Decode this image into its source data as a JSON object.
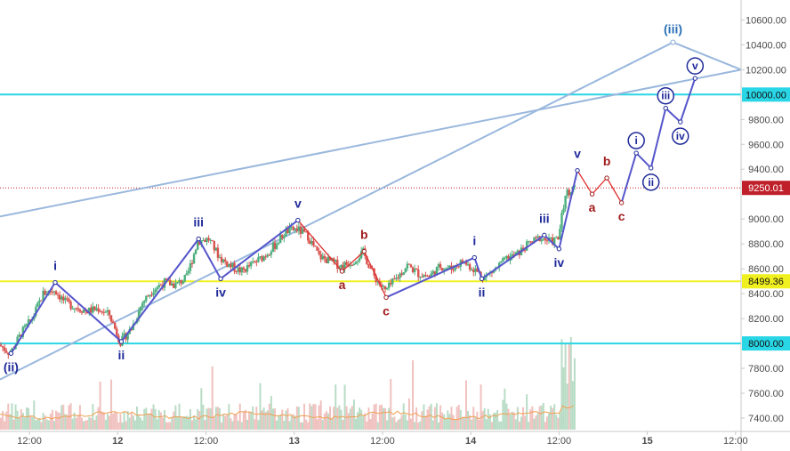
{
  "colors": {
    "background": "#ffffff",
    "axis_text": "#4a4a4a",
    "axis_line": "#c9c9c9",
    "up_candle": "#4caf7d",
    "down_candle": "#d9534f",
    "volume_up": "#b9dcc6",
    "volume_down": "#f0c1bf",
    "volume_ma": "#f0a050",
    "wave_line": "#5555cc",
    "wave_label_blue": "#1f2a9a",
    "wave_label_red": "#a01c1c",
    "correction_line": "#e03030",
    "channel_line": "#9ab8dd",
    "cyan_level": "#29d6e6",
    "yellow_level": "#f0f020",
    "price_line": "#c0202a"
  },
  "chart_data": {
    "type": "candlestick",
    "title": "",
    "xlabel": "",
    "ylabel": "",
    "y_axis_position": "right",
    "ylim": [
      7300,
      10760
    ],
    "yticks": [
      7400,
      7600,
      7800,
      8000,
      8200,
      8400,
      8600,
      8800,
      9000,
      9200,
      9400,
      9600,
      9800,
      10000,
      10200,
      10400,
      10600
    ],
    "ytick_labels": [
      "7400.00",
      "7600.00",
      "7800.00",
      "8000.00",
      "8200.00",
      "8400.00",
      "8600.00",
      "8800.00",
      "9000.00",
      "9200.00",
      "9400.00",
      "9600.00",
      "9800.00",
      "10000.00",
      "10200.00",
      "10400.00",
      "10600.00"
    ],
    "xlim": [
      "11 08:00",
      "15 12:45"
    ],
    "xticks": [
      {
        "t": "11 12:00",
        "label": "12:00"
      },
      {
        "t": "12 00:00",
        "label": "12"
      },
      {
        "t": "12 12:00",
        "label": "12:00"
      },
      {
        "t": "13 00:00",
        "label": "13"
      },
      {
        "t": "13 12:00",
        "label": "12:00"
      },
      {
        "t": "14 00:00",
        "label": "14"
      },
      {
        "t": "14 12:00",
        "label": "12:00"
      },
      {
        "t": "15 00:00",
        "label": "15"
      },
      {
        "t": "15 12:00",
        "label": "12:00"
      }
    ],
    "price_path": [
      [
        "11 08:00",
        7990
      ],
      [
        "11 09:30",
        7920
      ],
      [
        "11 11:00",
        8080
      ],
      [
        "11 12:30",
        8200
      ],
      [
        "11 14:00",
        8400
      ],
      [
        "11 15:30",
        8430
      ],
      [
        "11 17:00",
        8330
      ],
      [
        "11 18:30",
        8290
      ],
      [
        "11 20:00",
        8260
      ],
      [
        "11 21:30",
        8280
      ],
      [
        "11 23:00",
        8230
      ],
      [
        "12 00:30",
        8010
      ],
      [
        "12 02:00",
        8120
      ],
      [
        "12 03:30",
        8330
      ],
      [
        "12 05:00",
        8440
      ],
      [
        "12 06:30",
        8490
      ],
      [
        "12 08:00",
        8470
      ],
      [
        "12 09:30",
        8530
      ],
      [
        "12 11:00",
        8820
      ],
      [
        "12 12:30",
        8840
      ],
      [
        "12 14:00",
        8690
      ],
      [
        "12 15:30",
        8620
      ],
      [
        "12 17:00",
        8580
      ],
      [
        "12 18:30",
        8640
      ],
      [
        "12 20:00",
        8700
      ],
      [
        "12 21:30",
        8790
      ],
      [
        "12 23:00",
        8900
      ],
      [
        "13 00:30",
        8920
      ],
      [
        "13 02:00",
        8860
      ],
      [
        "13 03:30",
        8700
      ],
      [
        "13 05:00",
        8660
      ],
      [
        "13 06:30",
        8620
      ],
      [
        "13 08:00",
        8660
      ],
      [
        "13 09:30",
        8730
      ],
      [
        "13 11:00",
        8540
      ],
      [
        "13 12:30",
        8420
      ],
      [
        "13 14:00",
        8520
      ],
      [
        "13 15:30",
        8630
      ],
      [
        "13 17:00",
        8560
      ],
      [
        "13 18:30",
        8540
      ],
      [
        "13 20:00",
        8620
      ],
      [
        "13 21:30",
        8600
      ],
      [
        "13 23:00",
        8660
      ],
      [
        "14 00:30",
        8600
      ],
      [
        "14 02:00",
        8530
      ],
      [
        "14 03:30",
        8600
      ],
      [
        "14 05:00",
        8680
      ],
      [
        "14 06:30",
        8720
      ],
      [
        "14 08:00",
        8800
      ],
      [
        "14 09:30",
        8850
      ],
      [
        "14 11:00",
        8820
      ],
      [
        "14 12:00",
        8840
      ],
      [
        "14 13:00",
        9200
      ],
      [
        "14 14:00",
        9250.01
      ]
    ],
    "last_price": 9250.01,
    "last_price_label": "9250.01",
    "horizontal_levels": [
      {
        "value": 10000.0,
        "label": "10000.00",
        "color": "#29d6e6"
      },
      {
        "value": 8499.36,
        "label": "8499.36",
        "color": "#f0f020"
      },
      {
        "value": 8000.0,
        "label": "8000.00",
        "color": "#29d6e6"
      }
    ],
    "channel_lines": [
      {
        "start": [
          "11 08:00",
          9020
        ],
        "end": [
          "15 12:45",
          10200
        ]
      },
      {
        "start": [
          "11 08:00",
          7710
        ],
        "end": [
          "15 03:30",
          10420
        ]
      },
      {
        "start": [
          "15 03:30",
          10420
        ],
        "end": [
          "15 12:45",
          10200
        ]
      }
    ],
    "impulse_waves": [
      {
        "t": "11 09:30",
        "price": 7920,
        "label": "(ii)",
        "label_pos": "below"
      },
      {
        "t": "11 15:30",
        "price": 8490,
        "label": "i",
        "label_pos": "above"
      },
      {
        "t": "12 00:30",
        "price": 8015,
        "label": "ii",
        "label_pos": "below"
      },
      {
        "t": "12 11:00",
        "price": 8840,
        "label": "iii",
        "label_pos": "above"
      },
      {
        "t": "12 14:00",
        "price": 8520,
        "label": "iv",
        "label_pos": "below"
      },
      {
        "t": "13 00:30",
        "price": 8990,
        "label": "v",
        "label_pos": "above"
      }
    ],
    "correction_waves": [
      {
        "t": "13 06:30",
        "price": 8580,
        "label": "a",
        "label_pos": "below"
      },
      {
        "t": "13 09:30",
        "price": 8740,
        "label": "b",
        "label_pos": "above"
      },
      {
        "t": "13 12:30",
        "price": 8370,
        "label": "c",
        "label_pos": "below"
      }
    ],
    "second_impulse": [
      {
        "t": "14 00:30",
        "price": 8690,
        "label": "i",
        "label_pos": "above"
      },
      {
        "t": "14 01:30",
        "price": 8520,
        "label": "ii",
        "label_pos": "below"
      },
      {
        "t": "14 10:00",
        "price": 8870,
        "label": "iii",
        "label_pos": "above"
      },
      {
        "t": "14 12:00",
        "price": 8760,
        "label": "iv",
        "label_pos": "below"
      },
      {
        "t": "14 14:30",
        "price": 9390,
        "label": "v",
        "label_pos": "above"
      }
    ],
    "projected_correction": [
      {
        "t": "14 14:30",
        "price": 9390
      },
      {
        "t": "14 16:30",
        "price": 9200,
        "label": "a",
        "label_pos": "below"
      },
      {
        "t": "14 18:30",
        "price": 9330,
        "label": "b",
        "label_pos": "above"
      },
      {
        "t": "14 20:30",
        "price": 9130,
        "label": "c",
        "label_pos": "below"
      }
    ],
    "projected_impulse": [
      {
        "t": "14 20:30",
        "price": 9130
      },
      {
        "t": "14 22:30",
        "price": 9530,
        "label": "i",
        "label_pos": "above"
      },
      {
        "t": "15 00:30",
        "price": 9410,
        "label": "ii",
        "label_pos": "below"
      },
      {
        "t": "15 02:30",
        "price": 9890,
        "label": "iii",
        "label_pos": "above"
      },
      {
        "t": "15 04:30",
        "price": 9780,
        "label": "iv",
        "label_pos": "below"
      },
      {
        "t": "15 06:30",
        "price": 10130,
        "label": "v",
        "label_pos": "above"
      }
    ],
    "higher_degree_label": {
      "t": "15 03:30",
      "price": 10420,
      "label": "(iii)"
    }
  }
}
